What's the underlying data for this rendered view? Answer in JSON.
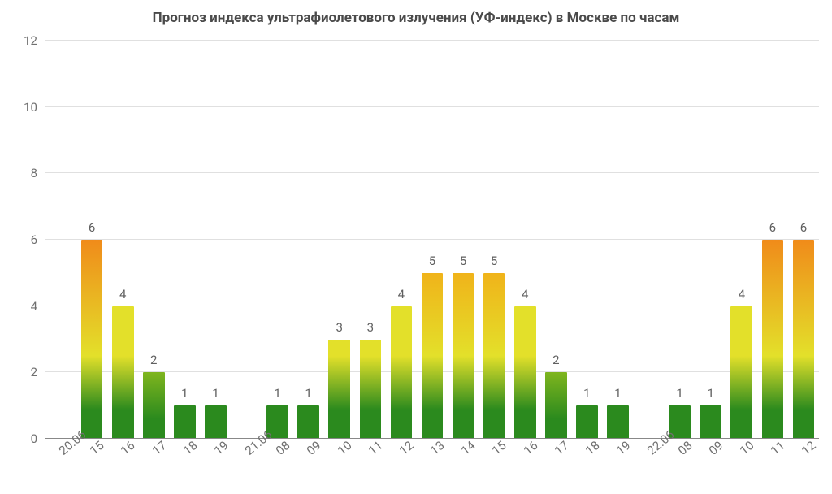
{
  "chart": {
    "type": "bar",
    "title": "Прогноз индекса ультрафиолетового излучения (УФ-индекс) в Москве по часам",
    "title_fontsize": 17,
    "title_color": "#4a4a4a",
    "ylim": [
      0,
      12
    ],
    "ytick_step": 2,
    "yticks": [
      0,
      2,
      4,
      6,
      8,
      10,
      12
    ],
    "ylabel_fontsize": 15,
    "xlabel_fontsize": 15,
    "xlabel_rotation_deg": -40,
    "bar_value_fontsize": 15,
    "background_color": "#ffffff",
    "grid_color": "#e0e0e0",
    "axis_color": "#888888",
    "tick_text_color": "#707070",
    "bar_width_ratio": 0.7,
    "gradient": {
      "stop_low": "#2b8a1e",
      "stop_mid": "#e3e02a",
      "stop_high": "#f08b1a",
      "mid_at_value": 2.5,
      "high_at_value": 6.0,
      "full_scale_value": 6.0
    },
    "categories": [
      {
        "label": "20.06",
        "value": null
      },
      {
        "label": "15",
        "value": 6
      },
      {
        "label": "16",
        "value": 4
      },
      {
        "label": "17",
        "value": 2
      },
      {
        "label": "18",
        "value": 1
      },
      {
        "label": "19",
        "value": 1
      },
      {
        "label": "21.06",
        "value": null
      },
      {
        "label": "08",
        "value": 1
      },
      {
        "label": "09",
        "value": 1
      },
      {
        "label": "10",
        "value": 3
      },
      {
        "label": "11",
        "value": 3
      },
      {
        "label": "12",
        "value": 4
      },
      {
        "label": "13",
        "value": 5
      },
      {
        "label": "14",
        "value": 5
      },
      {
        "label": "15",
        "value": 5
      },
      {
        "label": "16",
        "value": 4
      },
      {
        "label": "17",
        "value": 2
      },
      {
        "label": "18",
        "value": 1
      },
      {
        "label": "19",
        "value": 1
      },
      {
        "label": "22.06",
        "value": null
      },
      {
        "label": "08",
        "value": 1
      },
      {
        "label": "09",
        "value": 1
      },
      {
        "label": "10",
        "value": 4
      },
      {
        "label": "11",
        "value": 6
      },
      {
        "label": "12",
        "value": 6
      }
    ]
  }
}
